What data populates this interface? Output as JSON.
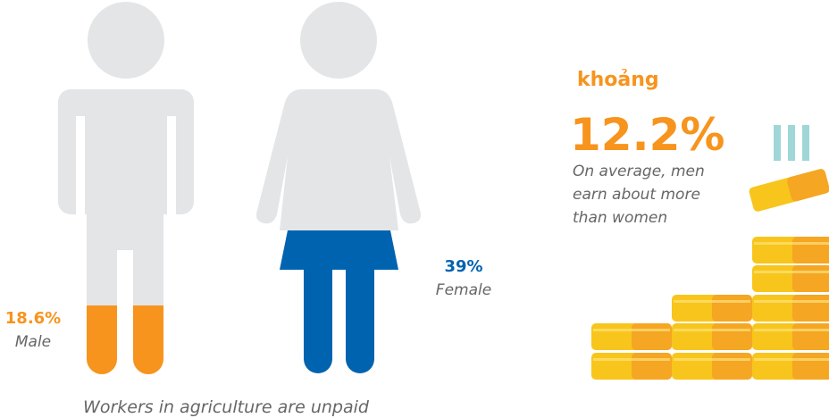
{
  "male": {
    "value": "18.6%",
    "label": "Male"
  },
  "female": {
    "value": "39%",
    "label": "Female"
  },
  "caption": "Workers in agriculture are unpaid",
  "pay_gap": {
    "prefix": "khoảng",
    "value": "12.2%",
    "description_lines": [
      "On average, men",
      "earn about more",
      "than women"
    ]
  }
}
